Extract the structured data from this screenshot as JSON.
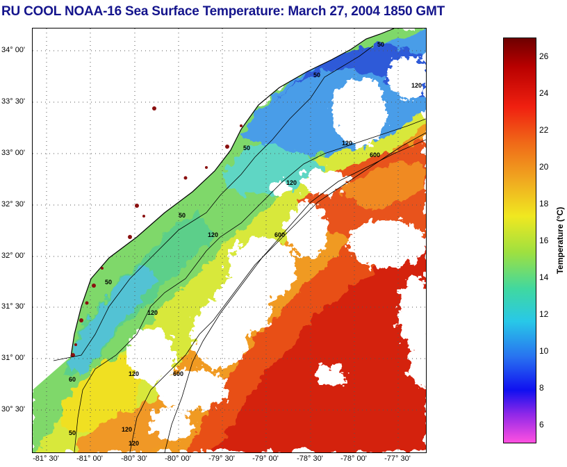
{
  "title": "RU COOL  NOAA-16  Sea Surface Temperature:  March 27, 2004 1850 GMT",
  "lat_labels": [
    "34° 00'",
    "33° 30'",
    "33° 00'",
    "32° 30'",
    "32° 00'",
    "31° 30'",
    "31° 00'",
    "30° 30'"
  ],
  "lon_labels": [
    "-81° 30'",
    "-81° 00'",
    "-80° 30'",
    "-80° 00'",
    "-79° 30'",
    "-79° 00'",
    "-78° 30'",
    "-78° 00'",
    "-77° 30'"
  ],
  "colorbar": {
    "label": "Temperature (°C)",
    "ticks": [
      "26",
      "24",
      "22",
      "20",
      "18",
      "16",
      "14",
      "12",
      "10",
      "8",
      "6"
    ],
    "min": 5,
    "max": 27
  },
  "contour_labels": [
    "50",
    "50",
    "50",
    "50",
    "50",
    "60",
    "120",
    "120",
    "120",
    "120",
    "120",
    "120",
    "600",
    "600",
    "600",
    "50",
    "120",
    "120"
  ],
  "colors": {
    "title": "#14148c",
    "cloud": "#ffffff",
    "land": "#ffffff",
    "coast": "#000000"
  }
}
